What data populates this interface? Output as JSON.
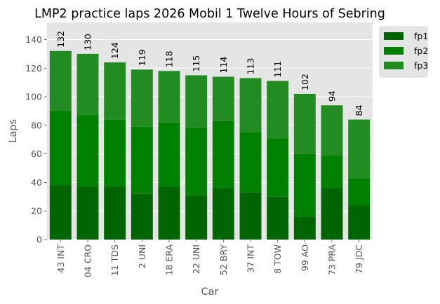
{
  "chart_data": {
    "type": "bar",
    "stacked": true,
    "title": "LMP2 practice laps 2026 Mobil 1 Twelve Hours of Sebring",
    "xlabel": "Car",
    "ylabel": "Laps",
    "ylim": [
      0,
      152
    ],
    "yticks": [
      0,
      20,
      40,
      60,
      80,
      100,
      120,
      140
    ],
    "grid": true,
    "legend_position": "upper-right-outside",
    "categories": [
      "43 INT",
      "04 CRO",
      "11 TDS",
      "2 UNI",
      "18 ERA",
      "22 UNI",
      "52 BRY",
      "37 INT",
      "8 TOW",
      "99 AO",
      "73 PRA",
      "79 JDC"
    ],
    "series": [
      {
        "name": "fp1",
        "color": "#006400",
        "values": [
          38,
          37,
          37,
          32,
          37,
          31,
          36,
          33,
          30,
          16,
          36,
          24
        ]
      },
      {
        "name": "fp2",
        "color": "#008000",
        "values": [
          52,
          50,
          47,
          47,
          45,
          47,
          47,
          42,
          41,
          44,
          23,
          19
        ]
      },
      {
        "name": "fp3",
        "color": "#228B22",
        "values": [
          42,
          43,
          40,
          40,
          36,
          37,
          31,
          38,
          40,
          42,
          35,
          41
        ]
      }
    ],
    "totals": [
      "132",
      "130",
      "124",
      "119",
      "118",
      "115",
      "114",
      "113",
      "111",
      "102",
      "94",
      "84"
    ]
  },
  "style": {
    "plot_background": "#E5E5E5",
    "grid_color": "#FFFFFF"
  }
}
